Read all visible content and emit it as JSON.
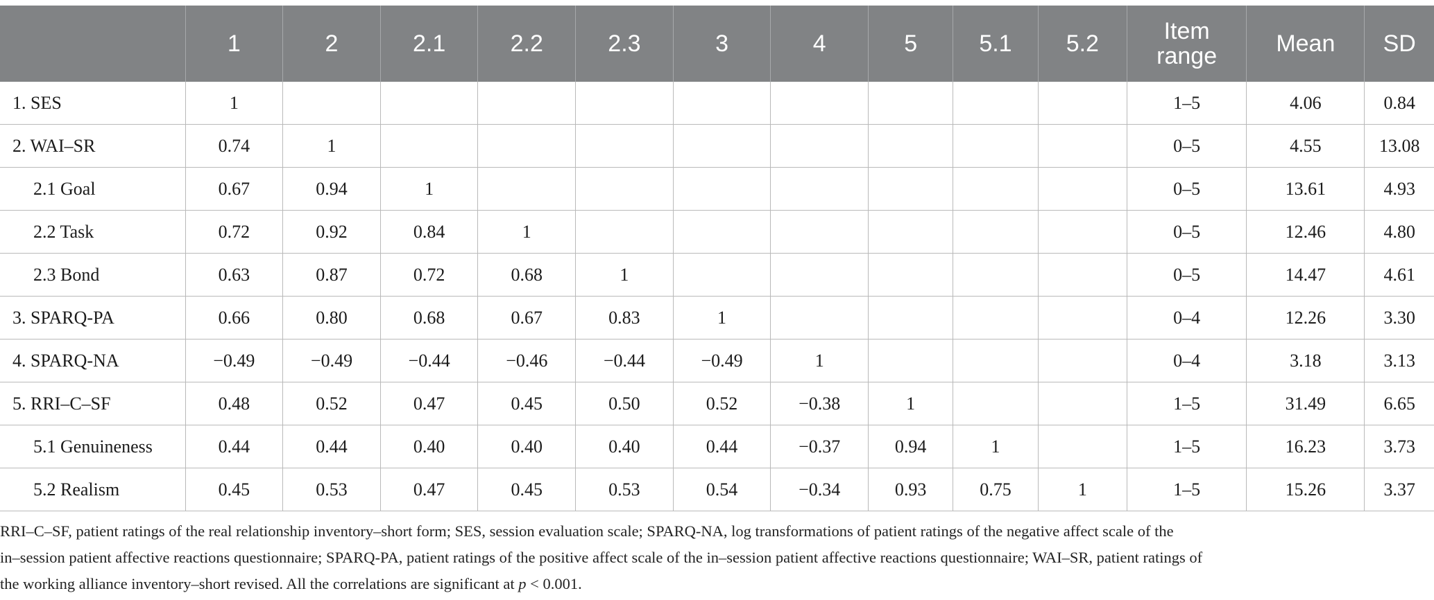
{
  "table": {
    "headers": [
      "",
      "1",
      "2",
      "2.1",
      "2.2",
      "2.3",
      "3",
      "4",
      "5",
      "5.1",
      "5.2",
      "Item\nrange",
      "Mean",
      "SD"
    ],
    "rows": [
      {
        "label": "1. SES",
        "indent": false,
        "cells": [
          "1",
          "",
          "",
          "",
          "",
          "",
          "",
          "",
          "",
          "",
          "1–5",
          "4.06",
          "0.84"
        ]
      },
      {
        "label": "2. WAI–SR",
        "indent": false,
        "cells": [
          "0.74",
          "1",
          "",
          "",
          "",
          "",
          "",
          "",
          "",
          "",
          "0–5",
          "4.55",
          "13.08"
        ]
      },
      {
        "label": "2.1 Goal",
        "indent": true,
        "cells": [
          "0.67",
          "0.94",
          "1",
          "",
          "",
          "",
          "",
          "",
          "",
          "",
          "0–5",
          "13.61",
          "4.93"
        ]
      },
      {
        "label": "2.2 Task",
        "indent": true,
        "cells": [
          "0.72",
          "0.92",
          "0.84",
          "1",
          "",
          "",
          "",
          "",
          "",
          "",
          "0–5",
          "12.46",
          "4.80"
        ]
      },
      {
        "label": "2.3 Bond",
        "indent": true,
        "cells": [
          "0.63",
          "0.87",
          "0.72",
          "0.68",
          "1",
          "",
          "",
          "",
          "",
          "",
          "0–5",
          "14.47",
          "4.61"
        ]
      },
      {
        "label": "3. SPARQ-PA",
        "indent": false,
        "cells": [
          "0.66",
          "0.80",
          "0.68",
          "0.67",
          "0.83",
          "1",
          "",
          "",
          "",
          "",
          "0–4",
          "12.26",
          "3.30"
        ]
      },
      {
        "label": "4. SPARQ-NA",
        "indent": false,
        "cells": [
          "−0.49",
          "−0.49",
          "−0.44",
          "−0.46",
          "−0.44",
          "−0.49",
          "1",
          "",
          "",
          "",
          "0–4",
          "3.18",
          "3.13"
        ]
      },
      {
        "label": "5. RRI–C–SF",
        "indent": false,
        "cells": [
          "0.48",
          "0.52",
          "0.47",
          "0.45",
          "0.50",
          "0.52",
          "−0.38",
          "1",
          "",
          "",
          "1–5",
          "31.49",
          "6.65"
        ]
      },
      {
        "label": "5.1 Genuineness",
        "indent": true,
        "cells": [
          "0.44",
          "0.44",
          "0.40",
          "0.40",
          "0.40",
          "0.44",
          "−0.37",
          "0.94",
          "1",
          "",
          "1–5",
          "16.23",
          "3.73"
        ]
      },
      {
        "label": "5.2 Realism",
        "indent": true,
        "cells": [
          "0.45",
          "0.53",
          "0.47",
          "0.45",
          "0.53",
          "0.54",
          "−0.34",
          "0.93",
          "0.75",
          "1",
          "1–5",
          "15.26",
          "3.37"
        ]
      }
    ]
  },
  "footnote": {
    "line1": "RRI–C–SF, patient ratings of the real relationship inventory–short form; SES, session evaluation scale; SPARQ-NA, log transformations of patient ratings of the negative affect scale of the",
    "line2": "in–session patient affective reactions questionnaire; SPARQ-PA, patient ratings of the positive affect scale of the in–session patient affective reactions questionnaire; WAI–SR, patient ratings of",
    "line3_prefix": "the working alliance inventory–short revised. All the correlations are significant at ",
    "line3_var": "p",
    "line3_suffix": " < 0.001."
  },
  "colors": {
    "header_bg": "#818385",
    "header_text": "#ffffff",
    "grid": "#b9b9b9",
    "text": "#1b1b1b"
  }
}
